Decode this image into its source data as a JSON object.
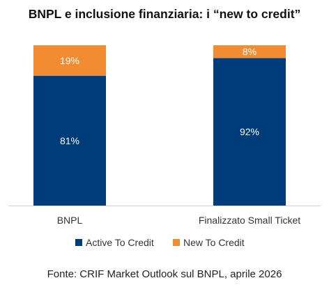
{
  "title": "BNPL e inclusione finanziaria: i “new to credit”",
  "source": "Fonte: CRIF Market Outlook sul BNPL, aprile 2026",
  "colors": {
    "active": "#003B7A",
    "new": "#F28C33",
    "axis": "#d0d0d0"
  },
  "chart_data": {
    "type": "bar",
    "stacked": true,
    "categories": [
      "BNPL",
      "Finalizzato Small Ticket"
    ],
    "series": [
      {
        "name": "Active To Credit",
        "values": [
          81,
          92
        ],
        "labels": [
          "81%",
          "92%"
        ]
      },
      {
        "name": "New To Credit",
        "values": [
          19,
          8
        ],
        "labels": [
          "19%",
          "8%"
        ]
      }
    ],
    "ylim": [
      0,
      100
    ],
    "grid": false,
    "legend_position": "bottom"
  }
}
